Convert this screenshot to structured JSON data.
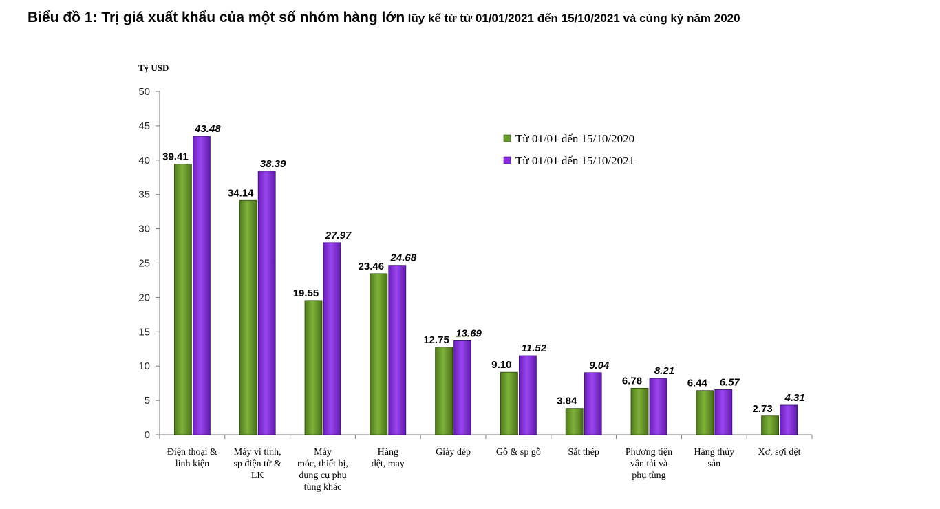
{
  "title": {
    "main": "Biểu đồ 1: Trị giá xuất khẩu của một số nhóm hàng lớn",
    "sub": "lũy kế từ từ 01/01/2021 đến 15/10/2021 và cùng kỳ năm 2020"
  },
  "chart_data": {
    "type": "bar",
    "ylabel": "Tỷ USD",
    "xlabel": "",
    "ylim": [
      0,
      50
    ],
    "yticks": [
      0,
      5,
      10,
      15,
      20,
      25,
      30,
      35,
      40,
      45,
      50
    ],
    "grid": false,
    "legend_position": "top-right",
    "categories": [
      [
        "Điện thoại &",
        "linh kiện"
      ],
      [
        "Máy vi tính,",
        "sp điện tử &",
        "LK"
      ],
      [
        "Máy",
        "móc, thiết bị,",
        "dụng cụ phụ",
        "tùng khác"
      ],
      [
        "Hàng",
        "dệt, may"
      ],
      [
        "Giày dép"
      ],
      [
        "Gỗ & sp gỗ"
      ],
      [
        "Sắt thép"
      ],
      [
        "Phương tiện",
        "vận tải và",
        "phụ tùng"
      ],
      [
        "Hàng thủy",
        "sản"
      ],
      [
        "Xơ, sợi dệt"
      ]
    ],
    "series": [
      {
        "name": "Từ 01/01 đến 15/10/2020",
        "color": "#6a9a2c",
        "values": [
          39.41,
          34.14,
          19.55,
          23.46,
          12.75,
          9.1,
          3.84,
          6.78,
          6.44,
          2.73
        ],
        "labels": [
          "39.41",
          "34.14",
          "19.55",
          "23.46",
          "12.75",
          "9.10",
          "3.84",
          "6.78",
          "6.44",
          "2.73"
        ]
      },
      {
        "name": "Từ 01/01 đến 15/10/2021",
        "color": "#8a2be2",
        "values": [
          43.48,
          38.39,
          27.97,
          24.68,
          13.69,
          11.52,
          9.04,
          8.21,
          6.57,
          4.31
        ],
        "labels": [
          "43.48",
          "38.39",
          "27.97",
          "24.68",
          "13.69",
          "11.52",
          "9.04",
          "8.21",
          "6.57",
          "4.31"
        ]
      }
    ]
  }
}
